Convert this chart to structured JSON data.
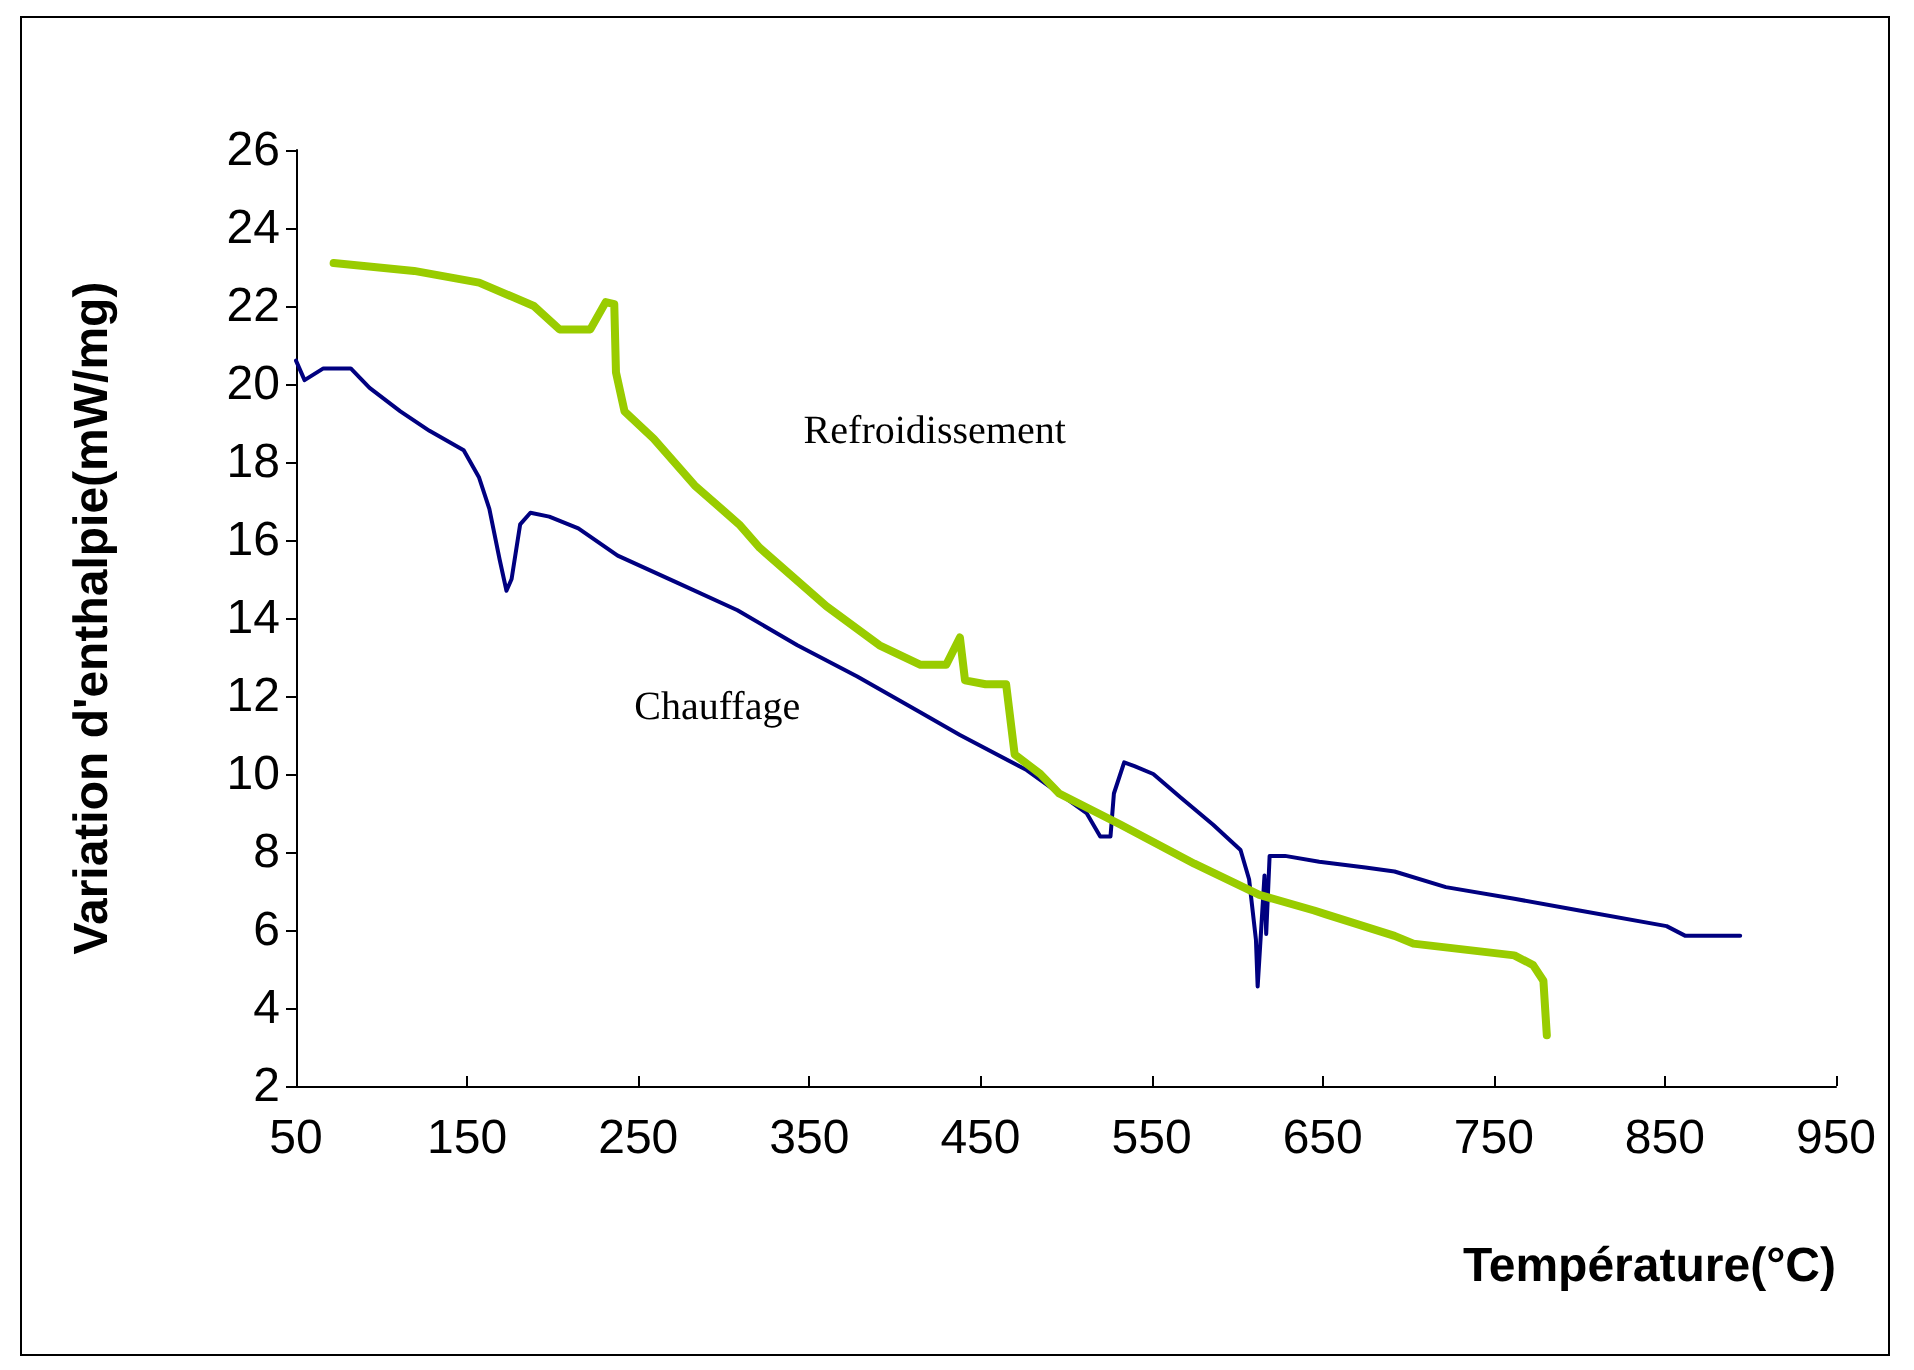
{
  "chart_data": {
    "type": "line",
    "xlabel": "Température(°C)",
    "ylabel": "Variation d'enthalpie(mW/mg)",
    "xlim": [
      50,
      950
    ],
    "xticks": [
      50,
      150,
      250,
      350,
      450,
      550,
      650,
      750,
      850,
      950
    ],
    "ylim": [
      2,
      26
    ],
    "yticks": [
      2,
      4,
      6,
      8,
      10,
      12,
      14,
      16,
      18,
      20,
      22,
      24,
      26
    ],
    "grid": false,
    "legend": false,
    "marker": "none",
    "line_style": "solid",
    "series": [
      {
        "name": "Chauffage",
        "color": "#000080",
        "x": [
          50,
          55,
          66,
          82,
          93,
          111,
          128,
          148,
          157,
          163,
          169,
          173,
          176,
          181,
          187,
          198,
          215,
          238,
          273,
          308,
          343,
          378,
          414,
          438,
          477,
          512,
          520,
          526,
          528,
          534,
          540,
          551,
          567,
          586,
          602,
          607,
          611,
          612,
          616,
          617,
          619,
          628,
          648,
          675,
          692,
          722,
          762,
          800,
          851,
          862,
          894
        ],
        "values": [
          20.6,
          20.1,
          20.4,
          20.4,
          19.9,
          19.3,
          18.8,
          18.3,
          17.6,
          16.8,
          15.5,
          14.7,
          15.0,
          16.4,
          16.7,
          16.6,
          16.3,
          15.6,
          14.9,
          14.2,
          13.3,
          12.5,
          11.6,
          11.0,
          10.1,
          9.0,
          8.4,
          8.4,
          9.5,
          10.3,
          10.2,
          10.0,
          9.4,
          8.7,
          8.05,
          7.3,
          5.75,
          4.55,
          7.4,
          5.9,
          7.9,
          7.9,
          7.75,
          7.6,
          7.5,
          7.1,
          6.8,
          6.5,
          6.1,
          5.85,
          5.85
        ]
      },
      {
        "name": "Refroidissement",
        "color": "#99cc00",
        "x": [
          72,
          119,
          157,
          189,
          204,
          222,
          231,
          236,
          237,
          242,
          259,
          283,
          309,
          321,
          360,
          391,
          415,
          430,
          438,
          441,
          453,
          465,
          470,
          485,
          496,
          532,
          575,
          613,
          645,
          652,
          692,
          703,
          762,
          773,
          779,
          781
        ],
        "values": [
          23.1,
          22.9,
          22.6,
          22.0,
          21.4,
          21.4,
          22.1,
          22.05,
          20.3,
          19.3,
          18.6,
          17.4,
          16.4,
          15.8,
          14.3,
          13.3,
          12.8,
          12.8,
          13.5,
          12.4,
          12.3,
          12.3,
          10.5,
          10.0,
          9.5,
          8.7,
          7.7,
          6.9,
          6.5,
          6.4,
          5.85,
          5.65,
          5.35,
          5.1,
          4.7,
          3.3
        ]
      }
    ]
  }
}
